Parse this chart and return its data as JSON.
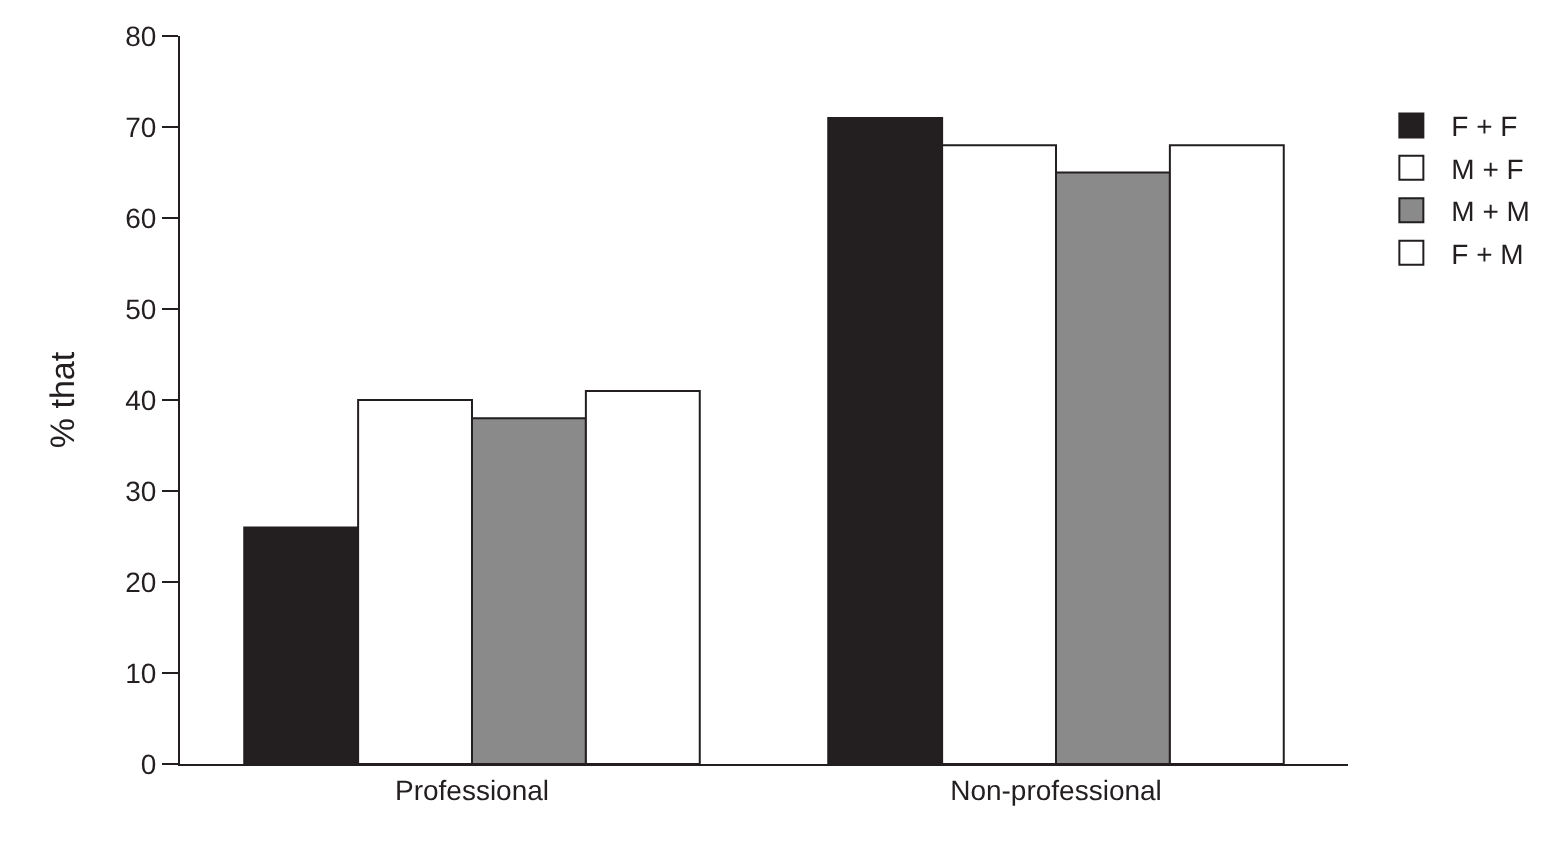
{
  "chart_data": {
    "type": "bar",
    "ylabel": "% that",
    "categories": [
      "Professional",
      "Non-professional"
    ],
    "series": [
      {
        "name": "F + F",
        "color": "#231f20",
        "values": [
          26,
          71
        ]
      },
      {
        "name": "M + F",
        "color": "#ffffff",
        "values": [
          40,
          68
        ]
      },
      {
        "name": "M + M",
        "color": "#8a8a8a",
        "values": [
          38,
          65
        ]
      },
      {
        "name": "F + M",
        "color": "#ffffff",
        "values": [
          41,
          68
        ]
      }
    ],
    "ylim": [
      0,
      80
    ],
    "yticks": [
      0,
      10,
      20,
      30,
      40,
      50,
      60,
      70,
      80
    ],
    "grid": false,
    "legend": "top right"
  }
}
